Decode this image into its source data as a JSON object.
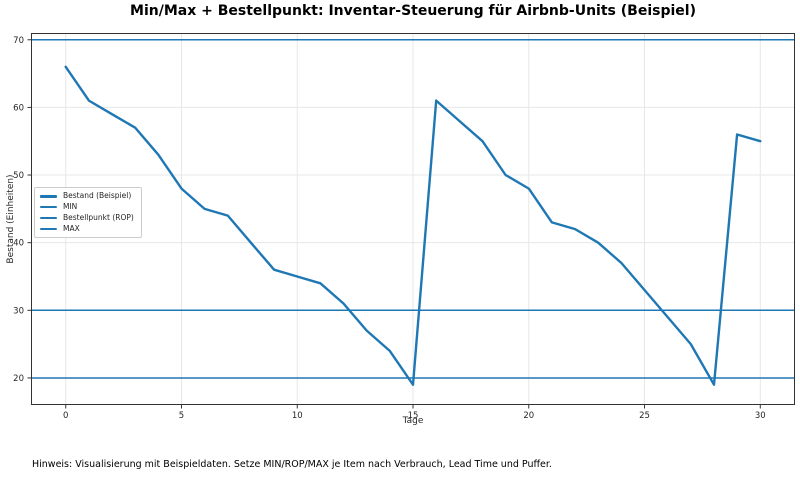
{
  "title": "Min/Max + Bestellpunkt: Inventar-Steuerung für Airbnb-Units (Beispiel)",
  "footer_note": "Hinweis: Visualisierung mit Beispieldaten. Setze MIN/ROP/MAX je Item nach Verbrauch, Lead Time und Puffer.",
  "colors": {
    "line": "#1f77b4",
    "grid": "#e7e7e7",
    "spine": "#333333",
    "tick_text": "#262626"
  },
  "chart_data": {
    "type": "line",
    "title": "Min/Max + Bestellpunkt: Inventar-Steuerung für Airbnb-Units (Beispiel)",
    "xlabel": "Tage",
    "ylabel": "Bestand (Einheiten)",
    "grid": true,
    "legend_position": "center-left",
    "x": [
      0,
      1,
      2,
      3,
      4,
      5,
      6,
      7,
      8,
      9,
      10,
      11,
      12,
      13,
      14,
      15,
      16,
      17,
      18,
      19,
      20,
      21,
      22,
      23,
      24,
      25,
      26,
      27,
      28,
      29,
      30
    ],
    "series": [
      {
        "name": "Bestand (Beispiel)",
        "type": "line",
        "values": [
          66,
          61,
          59,
          57,
          53,
          48,
          45,
          44,
          40,
          36,
          35,
          34,
          31,
          27,
          24,
          19,
          61,
          58,
          55,
          50,
          48,
          43,
          42,
          40,
          37,
          33,
          29,
          25,
          19,
          56,
          55
        ]
      },
      {
        "name": "MIN",
        "type": "hline",
        "value": 20
      },
      {
        "name": "Bestellpunkt (ROP)",
        "type": "hline",
        "value": 30
      },
      {
        "name": "MAX",
        "type": "hline",
        "value": 70
      }
    ],
    "xticks": [
      0,
      5,
      10,
      15,
      20,
      25,
      30
    ],
    "yticks": [
      20,
      30,
      40,
      50,
      60,
      70
    ],
    "xlim": [
      -1.5,
      31.5
    ],
    "ylim": [
      16,
      71
    ]
  }
}
